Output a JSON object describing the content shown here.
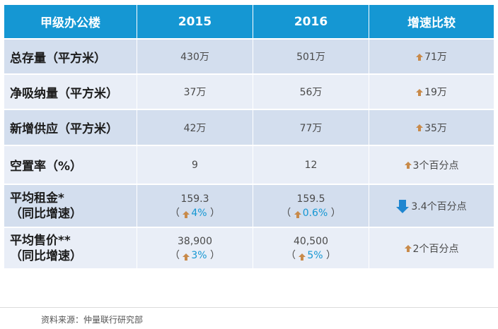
{
  "table": {
    "headers": [
      "甲级办公楼",
      "2015",
      "2016",
      "增速比较"
    ],
    "rows": [
      {
        "label": [
          "总存量（平方米）"
        ],
        "y2015": "430万",
        "y2016": "501万",
        "change_dir": "up",
        "change": "71万"
      },
      {
        "label": [
          "净吸纳量（平方米）"
        ],
        "y2015": "37万",
        "y2016": "56万",
        "change_dir": "up",
        "change": "19万"
      },
      {
        "label": [
          "新增供应（平方米）"
        ],
        "y2015": "42万",
        "y2016": "77万",
        "change_dir": "up",
        "change": "35万"
      },
      {
        "label": [
          "空置率（%）"
        ],
        "y2015": "9",
        "y2016": "12",
        "change_dir": "up",
        "change": "3个百分点"
      },
      {
        "label": [
          "平均租金*",
          "（同比增速）"
        ],
        "y2015": "159.3",
        "y2015_growth": "4%",
        "y2016": "159.5",
        "y2016_growth": "0.6%",
        "change_dir": "down",
        "change": "3.4个百分点"
      },
      {
        "label": [
          "平均售价**",
          "（同比增速）"
        ],
        "y2015": "38,900",
        "y2015_growth": "3%",
        "y2016": "40,500",
        "y2016_growth": "5%",
        "change_dir": "up",
        "change": "2个百分点"
      }
    ]
  },
  "colors": {
    "header_bg": "#1597d3",
    "row_dark": "#d3deee",
    "row_light": "#e9eef7",
    "up_arrow": "#c88a4a",
    "down_arrow": "#1f86d0",
    "growth_text": "#1597d3"
  },
  "footer": {
    "source": "资料来源：仲量联行研究部"
  }
}
